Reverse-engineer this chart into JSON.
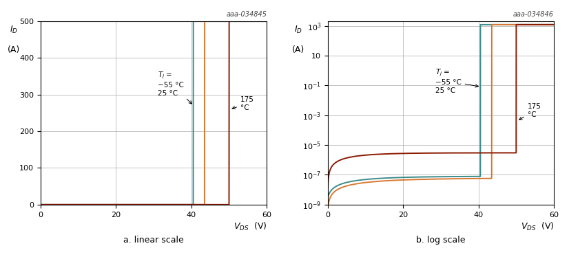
{
  "title_left": "aaa-034845",
  "title_right": "aaa-034846",
  "xlim": [
    0,
    60
  ],
  "ylim_linear": [
    0,
    500
  ],
  "ylim_log": [
    1e-09,
    2000.0
  ],
  "xticks": [
    0,
    20,
    40,
    60
  ],
  "yticks_linear": [
    0,
    100,
    200,
    300,
    400,
    500
  ],
  "caption_left": "a. linear scale",
  "caption_right": "b. log scale",
  "colors": {
    "teal": "#3d8b8b",
    "orange": "#d97830",
    "darkred": "#8b1a00"
  },
  "vbr_teal": 40.5,
  "vbr_orange": 43.5,
  "vbr_darkred": 50.0,
  "grid_color": "#b8b8b8"
}
